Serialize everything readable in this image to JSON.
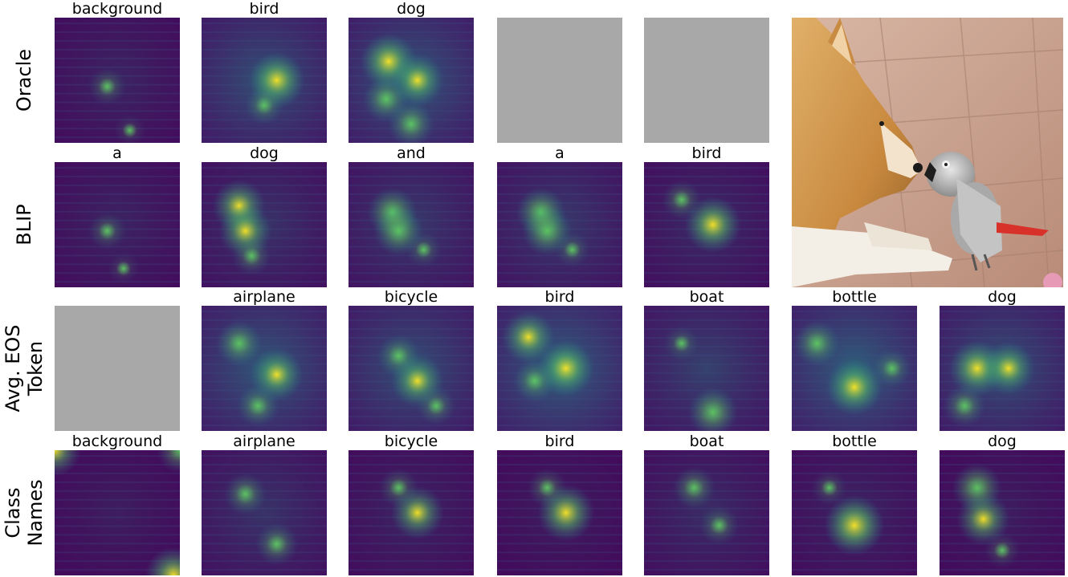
{
  "rows": [
    {
      "label_lines": [
        "Oracle"
      ],
      "cells": [
        {
          "title": "background",
          "kind": "heatmap",
          "intensity": 0.25,
          "blobs": [
            [
              0.42,
              0.55,
              0.35
            ],
            [
              0.6,
              0.9,
              0.2
            ]
          ]
        },
        {
          "title": "bird",
          "kind": "heatmap",
          "intensity": 0.55,
          "blobs": [
            [
              0.6,
              0.5,
              0.9
            ],
            [
              0.5,
              0.7,
              0.4
            ]
          ]
        },
        {
          "title": "dog",
          "kind": "heatmap",
          "intensity": 0.6,
          "blobs": [
            [
              0.32,
              0.35,
              0.9
            ],
            [
              0.55,
              0.5,
              0.8
            ],
            [
              0.3,
              0.65,
              0.6
            ],
            [
              0.5,
              0.85,
              0.6
            ]
          ]
        },
        {
          "title": "",
          "kind": "blank"
        },
        {
          "title": "",
          "kind": "blank"
        }
      ]
    },
    {
      "label_lines": [
        "BLIP"
      ],
      "cells": [
        {
          "title": "a",
          "kind": "heatmap",
          "intensity": 0.25,
          "blobs": [
            [
              0.42,
              0.55,
              0.35
            ],
            [
              0.55,
              0.85,
              0.2
            ]
          ]
        },
        {
          "title": "dog",
          "kind": "heatmap",
          "intensity": 0.35,
          "blobs": [
            [
              0.3,
              0.35,
              0.8
            ],
            [
              0.35,
              0.55,
              0.8
            ],
            [
              0.4,
              0.75,
              0.4
            ]
          ]
        },
        {
          "title": "and",
          "kind": "heatmap",
          "intensity": 0.4,
          "blobs": [
            [
              0.35,
              0.4,
              0.7
            ],
            [
              0.4,
              0.55,
              0.7
            ],
            [
              0.6,
              0.7,
              0.3
            ]
          ]
        },
        {
          "title": "a",
          "kind": "heatmap",
          "intensity": 0.4,
          "blobs": [
            [
              0.35,
              0.4,
              0.7
            ],
            [
              0.4,
              0.55,
              0.7
            ],
            [
              0.6,
              0.7,
              0.3
            ]
          ]
        },
        {
          "title": "bird",
          "kind": "heatmap",
          "intensity": 0.3,
          "blobs": [
            [
              0.55,
              0.5,
              0.9
            ],
            [
              0.3,
              0.3,
              0.4
            ]
          ]
        }
      ]
    },
    {
      "label_lines": [
        "Avg. EOS",
        "Token"
      ],
      "cells": [
        {
          "title": "",
          "kind": "blank"
        },
        {
          "title": "airplane",
          "kind": "heatmap",
          "intensity": 0.6,
          "blobs": [
            [
              0.3,
              0.3,
              0.6
            ],
            [
              0.6,
              0.55,
              0.8
            ],
            [
              0.45,
              0.8,
              0.5
            ]
          ]
        },
        {
          "title": "bicycle",
          "kind": "heatmap",
          "intensity": 0.55,
          "blobs": [
            [
              0.55,
              0.6,
              0.8
            ],
            [
              0.4,
              0.4,
              0.5
            ],
            [
              0.7,
              0.8,
              0.4
            ]
          ]
        },
        {
          "title": "bird",
          "kind": "heatmap",
          "intensity": 0.65,
          "blobs": [
            [
              0.25,
              0.25,
              0.8
            ],
            [
              0.55,
              0.5,
              0.9
            ],
            [
              0.3,
              0.6,
              0.5
            ]
          ]
        },
        {
          "title": "boat",
          "kind": "heatmap",
          "intensity": 0.45,
          "blobs": [
            [
              0.55,
              0.85,
              0.7
            ],
            [
              0.3,
              0.3,
              0.3
            ]
          ]
        },
        {
          "title": "bottle",
          "kind": "heatmap",
          "intensity": 0.65,
          "blobs": [
            [
              0.5,
              0.65,
              0.9
            ],
            [
              0.2,
              0.3,
              0.6
            ],
            [
              0.8,
              0.5,
              0.4
            ]
          ]
        },
        {
          "title": "dog",
          "kind": "heatmap",
          "intensity": 0.55,
          "blobs": [
            [
              0.3,
              0.5,
              0.9
            ],
            [
              0.55,
              0.5,
              0.8
            ],
            [
              0.2,
              0.8,
              0.5
            ]
          ]
        }
      ]
    },
    {
      "label_lines": [
        "Class",
        "Names"
      ],
      "cells": [
        {
          "title": "background",
          "kind": "heatmap",
          "intensity": 0.2,
          "blobs": [
            [
              0.0,
              0.0,
              0.8
            ],
            [
              1.0,
              0.0,
              0.6
            ],
            [
              0.95,
              1.0,
              0.9
            ]
          ]
        },
        {
          "title": "airplane",
          "kind": "heatmap",
          "intensity": 0.35,
          "blobs": [
            [
              0.35,
              0.35,
              0.5
            ],
            [
              0.6,
              0.75,
              0.5
            ]
          ]
        },
        {
          "title": "bicycle",
          "kind": "heatmap",
          "intensity": 0.25,
          "blobs": [
            [
              0.55,
              0.5,
              0.8
            ],
            [
              0.4,
              0.3,
              0.4
            ]
          ]
        },
        {
          "title": "bird",
          "kind": "heatmap",
          "intensity": 0.2,
          "blobs": [
            [
              0.55,
              0.5,
              0.9
            ],
            [
              0.4,
              0.3,
              0.4
            ]
          ]
        },
        {
          "title": "boat",
          "kind": "heatmap",
          "intensity": 0.3,
          "blobs": [
            [
              0.4,
              0.3,
              0.5
            ],
            [
              0.6,
              0.6,
              0.4
            ]
          ]
        },
        {
          "title": "bottle",
          "kind": "heatmap",
          "intensity": 0.25,
          "blobs": [
            [
              0.5,
              0.6,
              1.0
            ],
            [
              0.3,
              0.3,
              0.3
            ]
          ]
        },
        {
          "title": "dog",
          "kind": "heatmap",
          "intensity": 0.2,
          "blobs": [
            [
              0.3,
              0.3,
              0.7
            ],
            [
              0.35,
              0.55,
              0.8
            ],
            [
              0.5,
              0.8,
              0.3
            ]
          ]
        }
      ]
    }
  ],
  "colormap": [
    "#440154",
    "#3b528b",
    "#21918c",
    "#5ec962",
    "#fde725"
  ],
  "blank_color": "#a8a8a8",
  "photo": {
    "subject": "dog-and-parrot-photo"
  }
}
